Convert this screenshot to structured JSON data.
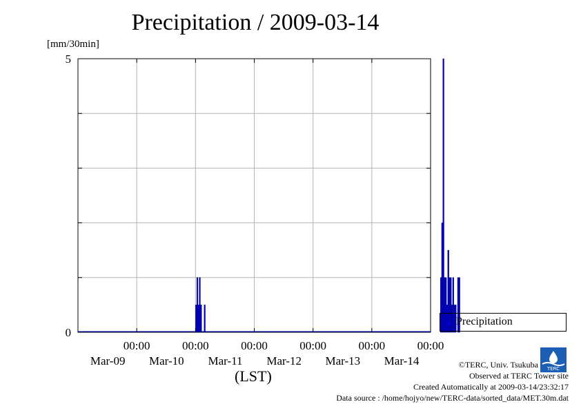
{
  "chart_data": {
    "type": "bar",
    "title": "Precipitation / 2009-03-14",
    "ylabel": "[mm/30min]",
    "xlabel": "(LST)",
    "ylim": [
      0,
      5
    ],
    "ytick_labels": [
      "0",
      "5"
    ],
    "xlim_days": [
      -1.0,
      5.0
    ],
    "x_tick_labels": [
      {
        "time": "00:00",
        "date": "Mar-09"
      },
      {
        "time": "00:00",
        "date": "Mar-10"
      },
      {
        "time": "00:00",
        "date": "Mar-11"
      },
      {
        "time": "00:00",
        "date": "Mar-12"
      },
      {
        "time": "00:00",
        "date": "Mar-13"
      },
      {
        "time": "00:00",
        "date": "Mar-14"
      }
    ],
    "legend": {
      "entries": [
        "Precipitation"
      ],
      "position": "right, outside"
    },
    "grid": true,
    "series": [
      {
        "name": "Precipitation",
        "color": "#0000d0",
        "points": [
          {
            "x": "2009-03-10 00:00",
            "y": 0.5
          },
          {
            "x": "2009-03-10 00:30",
            "y": 1.0
          },
          {
            "x": "2009-03-10 01:00",
            "y": 0.5
          },
          {
            "x": "2009-03-10 01:30",
            "y": 1.0
          },
          {
            "x": "2009-03-10 02:00",
            "y": 0.5
          },
          {
            "x": "2009-03-10 03:30",
            "y": 0.5
          },
          {
            "x": "2009-03-14 04:00",
            "y": 1.0
          },
          {
            "x": "2009-03-14 04:30",
            "y": 2.0
          },
          {
            "x": "2009-03-14 05:00",
            "y": 5.0
          },
          {
            "x": "2009-03-14 05:30",
            "y": 1.0
          },
          {
            "x": "2009-03-14 06:00",
            "y": 1.0
          },
          {
            "x": "2009-03-14 06:30",
            "y": 0.5
          },
          {
            "x": "2009-03-14 07:00",
            "y": 1.5
          },
          {
            "x": "2009-03-14 07:30",
            "y": 1.0
          },
          {
            "x": "2009-03-14 08:00",
            "y": 1.0
          },
          {
            "x": "2009-03-14 08:30",
            "y": 0.5
          },
          {
            "x": "2009-03-14 09:00",
            "y": 1.0
          },
          {
            "x": "2009-03-14 09:30",
            "y": 0.5
          },
          {
            "x": "2009-03-14 10:00",
            "y": 0.5
          },
          {
            "x": "2009-03-14 11:00",
            "y": 1.0
          },
          {
            "x": "2009-03-14 11:30",
            "y": 1.0
          }
        ]
      }
    ]
  },
  "credits": {
    "copyright": "©TERC, Univ. Tsukuba",
    "site": "Observed at TERC Tower site",
    "created": "Created Automatically at 2009-03-14/23:32:17",
    "source": "Data source : /home/hojyo/new/TERC-data/sorted_data/MET.30m.dat"
  },
  "logo_text": "TERC"
}
